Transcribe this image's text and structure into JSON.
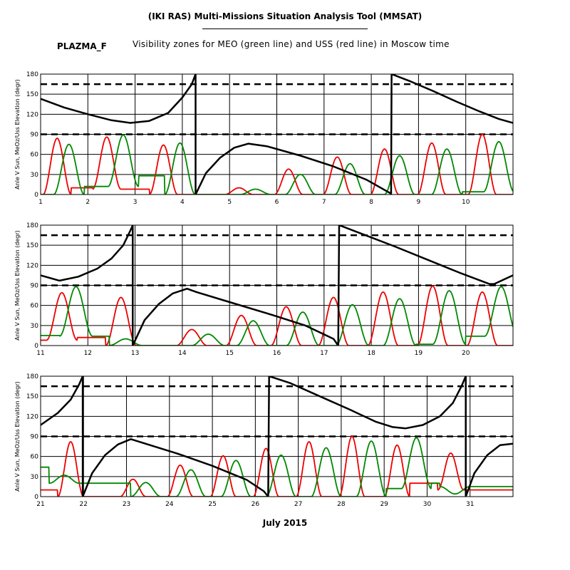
{
  "header": {
    "title": "(IKI RAS) Multi-Missions Situation Analysis Tool (MMSAT)",
    "mission": "PLAZMA_F",
    "subtitle": "Visibility zones for MEO (green line) and USS (red line) in Moscow time",
    "month_label": "July 2015"
  },
  "colors": {
    "meo": "#008800",
    "uss": "#ee0000",
    "sun": "#000000",
    "frame": "#000000"
  },
  "chart_data": [
    {
      "type": "line",
      "panel": 1,
      "ylabel": "Anle V Sun, MeOz/Uss Elevation (degr)",
      "xlim": [
        1,
        11
      ],
      "ylim": [
        0,
        180
      ],
      "xticks": [
        1,
        2,
        3,
        4,
        5,
        6,
        7,
        8,
        9,
        10
      ],
      "xtick_labels": [
        "1",
        "2",
        "3",
        "4",
        "5",
        "6",
        "7",
        "8",
        "9",
        "10"
      ],
      "yticks": [
        0,
        30,
        60,
        90,
        120,
        150,
        180
      ],
      "grid": true,
      "hlines_dashed": [
        90,
        165
      ],
      "series": [
        {
          "key": "sun",
          "values": [
            [
              1.0,
              143
            ],
            [
              1.5,
              130
            ],
            [
              2.0,
              120
            ],
            [
              2.5,
              111
            ],
            [
              2.9,
              107
            ],
            [
              3.3,
              110
            ],
            [
              3.7,
              122
            ],
            [
              4.0,
              145
            ],
            [
              4.2,
              165
            ],
            [
              4.28,
              180
            ],
            [
              4.28,
              0
            ],
            [
              4.5,
              32
            ],
            [
              4.8,
              55
            ],
            [
              5.1,
              70
            ],
            [
              5.4,
              76
            ],
            [
              5.8,
              72
            ],
            [
              6.5,
              58
            ],
            [
              7.2,
              42
            ],
            [
              7.9,
              22
            ],
            [
              8.4,
              2
            ],
            [
              8.42,
              0
            ],
            [
              8.43,
              180
            ],
            [
              8.8,
              170
            ],
            [
              9.3,
              155
            ],
            [
              9.8,
              139
            ],
            [
              10.3,
              124
            ],
            [
              10.7,
              113
            ],
            [
              11.0,
              107
            ]
          ]
        },
        {
          "key": "uss",
          "peaks": [
            [
              1.35,
              84
            ],
            [
              2.4,
              86
            ],
            [
              3.6,
              74
            ],
            [
              5.2,
              10
            ],
            [
              6.25,
              38
            ],
            [
              7.28,
              56
            ],
            [
              8.28,
              68
            ],
            [
              9.28,
              77
            ],
            [
              10.35,
              90
            ]
          ],
          "floors": [
            0,
            10,
            8,
            0,
            0,
            0,
            0,
            0,
            0,
            0
          ],
          "width": 0.6
        },
        {
          "key": "meo",
          "peaks": [
            [
              1.6,
              75
            ],
            [
              2.75,
              89
            ],
            [
              3.95,
              77
            ],
            [
              5.55,
              8
            ],
            [
              6.5,
              30
            ],
            [
              7.55,
              46
            ],
            [
              8.6,
              58
            ],
            [
              9.6,
              68
            ],
            [
              10.7,
              79
            ]
          ],
          "floors": [
            0,
            12,
            28,
            0,
            0,
            0,
            0,
            0,
            4,
            20
          ],
          "width": 0.65
        }
      ]
    },
    {
      "type": "line",
      "panel": 2,
      "ylabel": "Anle V Sun, MeOz/Uss Elevation (degr)",
      "xlim": [
        11,
        21
      ],
      "ylim": [
        0,
        180
      ],
      "xticks": [
        11,
        12,
        13,
        14,
        15,
        16,
        17,
        18,
        19,
        20
      ],
      "xtick_labels": [
        "11",
        "12",
        "13",
        "14",
        "15",
        "16",
        "17",
        "18",
        "19",
        "20"
      ],
      "yticks": [
        0,
        30,
        60,
        90,
        120,
        150,
        180
      ],
      "grid": true,
      "hlines_dashed": [
        90,
        165
      ],
      "series": [
        {
          "key": "sun",
          "values": [
            [
              11.0,
              105
            ],
            [
              11.4,
              97
            ],
            [
              11.8,
              103
            ],
            [
              12.2,
              115
            ],
            [
              12.5,
              130
            ],
            [
              12.75,
              150
            ],
            [
              12.9,
              172
            ],
            [
              12.95,
              180
            ],
            [
              12.95,
              0
            ],
            [
              13.2,
              38
            ],
            [
              13.5,
              62
            ],
            [
              13.8,
              78
            ],
            [
              14.1,
              85
            ],
            [
              14.3,
              80
            ],
            [
              15.0,
              65
            ],
            [
              15.8,
              48
            ],
            [
              16.6,
              30
            ],
            [
              17.2,
              10
            ],
            [
              17.3,
              0
            ],
            [
              17.32,
              180
            ],
            [
              17.8,
              167
            ],
            [
              18.5,
              148
            ],
            [
              19.2,
              128
            ],
            [
              19.9,
              108
            ],
            [
              20.5,
              92
            ],
            [
              20.6,
              92
            ],
            [
              21.0,
              105
            ]
          ]
        },
        {
          "key": "uss",
          "peaks": [
            [
              11.45,
              79
            ],
            [
              12.7,
              72
            ],
            [
              14.2,
              24
            ],
            [
              15.25,
              45
            ],
            [
              16.2,
              58
            ],
            [
              17.2,
              72
            ],
            [
              18.25,
              80
            ],
            [
              19.3,
              89
            ],
            [
              20.35,
              80
            ]
          ],
          "floors": [
            8,
            12,
            0,
            0,
            0,
            0,
            0,
            0,
            0,
            0
          ],
          "width": 0.65
        },
        {
          "key": "meo",
          "peaks": [
            [
              11.75,
              88
            ],
            [
              12.8,
              10
            ],
            [
              14.55,
              17
            ],
            [
              15.5,
              37
            ],
            [
              16.55,
              50
            ],
            [
              17.6,
              61
            ],
            [
              18.6,
              70
            ],
            [
              19.65,
              82
            ],
            [
              20.75,
              88
            ]
          ],
          "floors": [
            15,
            14,
            0,
            0,
            0,
            0,
            0,
            2,
            14,
            45
          ],
          "width": 0.7
        }
      ]
    },
    {
      "type": "line",
      "panel": 3,
      "ylabel": "Anle V Sun, MeOz/Uss Elevation (degr)",
      "xlim": [
        21,
        32
      ],
      "ylim": [
        0,
        180
      ],
      "xticks": [
        21,
        22,
        23,
        24,
        25,
        26,
        27,
        28,
        29,
        30,
        31
      ],
      "xtick_labels": [
        "21",
        "22",
        "23",
        "24",
        "25",
        "26",
        "27",
        "28",
        "29",
        "30",
        "31"
      ],
      "yticks": [
        0,
        30,
        60,
        90,
        120,
        150,
        180
      ],
      "grid": true,
      "hlines_dashed": [
        90,
        165
      ],
      "series": [
        {
          "key": "sun",
          "values": [
            [
              21.0,
              107
            ],
            [
              21.4,
              125
            ],
            [
              21.7,
              145
            ],
            [
              21.9,
              168
            ],
            [
              21.98,
              180
            ],
            [
              21.98,
              0
            ],
            [
              22.2,
              35
            ],
            [
              22.5,
              62
            ],
            [
              22.8,
              78
            ],
            [
              23.1,
              86
            ],
            [
              23.4,
              80
            ],
            [
              24.2,
              64
            ],
            [
              25.0,
              46
            ],
            [
              25.8,
              25
            ],
            [
              26.2,
              8
            ],
            [
              26.3,
              0
            ],
            [
              26.32,
              180
            ],
            [
              26.8,
              170
            ],
            [
              27.5,
              150
            ],
            [
              28.2,
              130
            ],
            [
              28.8,
              112
            ],
            [
              29.2,
              104
            ],
            [
              29.5,
              102
            ],
            [
              29.9,
              107
            ],
            [
              30.3,
              120
            ],
            [
              30.6,
              140
            ],
            [
              30.8,
              165
            ],
            [
              30.9,
              180
            ],
            [
              30.9,
              0
            ],
            [
              31.1,
              35
            ],
            [
              31.4,
              62
            ],
            [
              31.7,
              77
            ],
            [
              32.0,
              79
            ]
          ]
        },
        {
          "key": "uss",
          "peaks": [
            [
              21.7,
              82
            ],
            [
              23.15,
              26
            ],
            [
              24.25,
              47
            ],
            [
              25.25,
              61
            ],
            [
              26.25,
              72
            ],
            [
              27.25,
              82
            ],
            [
              28.25,
              90
            ],
            [
              29.3,
              77
            ],
            [
              30.55,
              65
            ]
          ],
          "floors": [
            10,
            0,
            0,
            0,
            0,
            0,
            0,
            0,
            20,
            10,
            0
          ],
          "width": 0.6
        },
        {
          "key": "meo",
          "peaks": [
            [
              21.55,
              32
            ],
            [
              23.45,
              21
            ],
            [
              24.5,
              40
            ],
            [
              25.55,
              54
            ],
            [
              26.6,
              62
            ],
            [
              27.65,
              73
            ],
            [
              28.7,
              83
            ],
            [
              29.75,
              88
            ],
            [
              30.65,
              4
            ]
          ],
          "floors": [
            44,
            20,
            0,
            0,
            0,
            0,
            0,
            12,
            20,
            15,
            0
          ],
          "width": 0.7
        }
      ]
    }
  ]
}
